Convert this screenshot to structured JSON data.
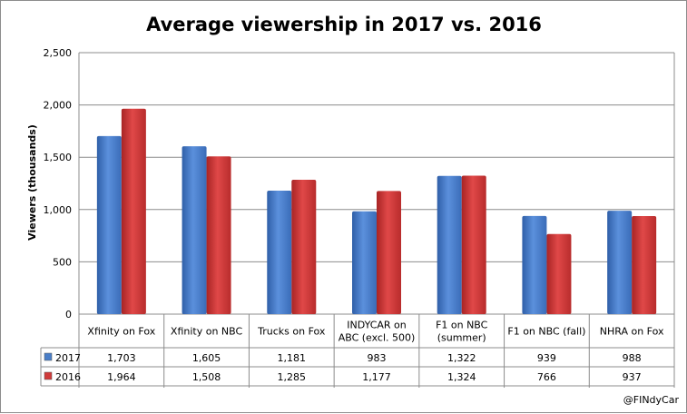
{
  "chart_data": {
    "type": "bar",
    "title": "Average viewership in 2017 vs. 2016",
    "ylabel": "Viewers (thousands)",
    "xlabel": "",
    "ylim": [
      0,
      2500
    ],
    "yticks": [
      0,
      500,
      1000,
      1500,
      2000,
      2500
    ],
    "ytick_labels": [
      "0",
      "500",
      "1,000",
      "1,500",
      "2,000",
      "2,500"
    ],
    "grid": true,
    "categories": [
      [
        "Xfinity on Fox"
      ],
      [
        "Xfinity on NBC"
      ],
      [
        "Trucks on Fox"
      ],
      [
        "INDYCAR on",
        "ABC (excl. 500)"
      ],
      [
        "F1 on NBC",
        "(summer)"
      ],
      [
        "F1 on NBC (fall)"
      ],
      [
        "NHRA on Fox"
      ]
    ],
    "series": [
      {
        "name": "2017",
        "color": "#4a7ec8",
        "values": [
          1703,
          1605,
          1181,
          983,
          1322,
          939,
          988
        ],
        "labels": [
          "1,703",
          "1,605",
          "1,181",
          "983",
          "1,322",
          "939",
          "988"
        ]
      },
      {
        "name": "2016",
        "color": "#d03a3a",
        "values": [
          1964,
          1508,
          1285,
          1177,
          1324,
          766,
          937
        ],
        "labels": [
          "1,964",
          "1,508",
          "1,285",
          "1,177",
          "1,324",
          "766",
          "937"
        ]
      }
    ],
    "data_table": true,
    "credit": "@FINdyCar"
  }
}
